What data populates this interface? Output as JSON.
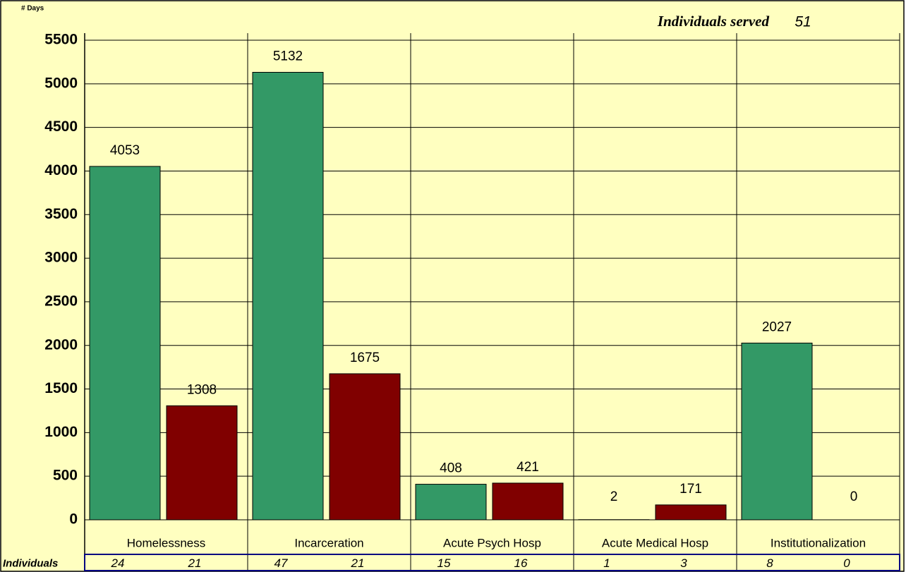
{
  "chart_data": {
    "type": "bar",
    "title": "Individuals served",
    "title_value": 51,
    "ylabel": "# Days",
    "categories": [
      "Homelessness",
      "Incarceration",
      "Acute Psych Hosp",
      "Acute Medical Hosp",
      "Institutionalization"
    ],
    "series": [
      {
        "color": "#339966",
        "values": [
          4053,
          5132,
          408,
          2,
          2027
        ],
        "individuals": [
          24,
          47,
          15,
          1,
          8
        ]
      },
      {
        "color": "#800000",
        "values": [
          1308,
          1675,
          421,
          171,
          0
        ],
        "individuals": [
          21,
          21,
          16,
          3,
          0
        ]
      }
    ],
    "row_label": "Individuals",
    "ylim": [
      0,
      5500
    ],
    "yticks": [
      0,
      500,
      1000,
      1500,
      2000,
      2500,
      3000,
      3500,
      4000,
      4500,
      5000,
      5500
    ],
    "grid": true,
    "background": "#ffffc0"
  }
}
